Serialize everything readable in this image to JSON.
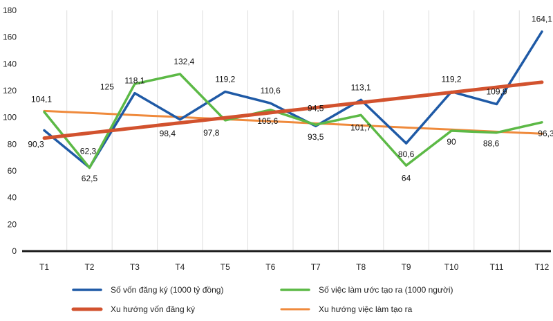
{
  "chart_data": {
    "type": "line",
    "title": "",
    "xlabel": "",
    "ylabel": "",
    "categories": [
      "T1",
      "T2",
      "T3",
      "T4",
      "T5",
      "T6",
      "T7",
      "T8",
      "T9",
      "T10",
      "T11",
      "T12"
    ],
    "ylim": [
      0,
      180
    ],
    "yticks": [
      0,
      20,
      40,
      60,
      80,
      100,
      120,
      140,
      160,
      180
    ],
    "grid": "vertical",
    "legend_position": "bottom",
    "series": [
      {
        "name": "Số vốn đăng ký (1000 tỷ đồng)",
        "color": "#1f5aa6",
        "values": [
          90.3,
          62.5,
          118.1,
          98.4,
          119.2,
          110.6,
          93.5,
          113.1,
          80.6,
          119.2,
          109.9,
          164.1
        ],
        "labels": [
          "90,3",
          "62,5",
          "118,1",
          "98,4",
          "119,2",
          "110,6",
          "93,5",
          "113,1",
          "80,6",
          "119,2",
          "109,9",
          "164,1"
        ]
      },
      {
        "name": "Số việc làm ước tạo ra (1000 người)",
        "color": "#5cb946",
        "values": [
          104.1,
          62.3,
          125,
          132.4,
          97.8,
          105.6,
          94.5,
          101.7,
          64,
          90,
          88.6,
          96.3
        ],
        "labels": [
          "104,1",
          "62,3",
          "125",
          "132,4",
          "97,8",
          "105,6",
          "94,5",
          "101,7",
          "64",
          "90",
          "88,6",
          "96,3"
        ]
      },
      {
        "name": "Xu hướng vốn đăng ký",
        "color": "#d2522e",
        "trend": true,
        "values": [
          84.5,
          88.3,
          92.1,
          95.9,
          99.7,
          103.5,
          107.3,
          111.1,
          114.9,
          118.7,
          122.5,
          126.3
        ]
      },
      {
        "name": "Xu hướng việc làm tạo ra",
        "color": "#ef8a3c",
        "trend": true,
        "values": [
          104.8,
          103.3,
          101.7,
          100.2,
          98.6,
          97.1,
          95.5,
          94.0,
          92.4,
          90.9,
          89.3,
          87.8
        ]
      }
    ]
  }
}
